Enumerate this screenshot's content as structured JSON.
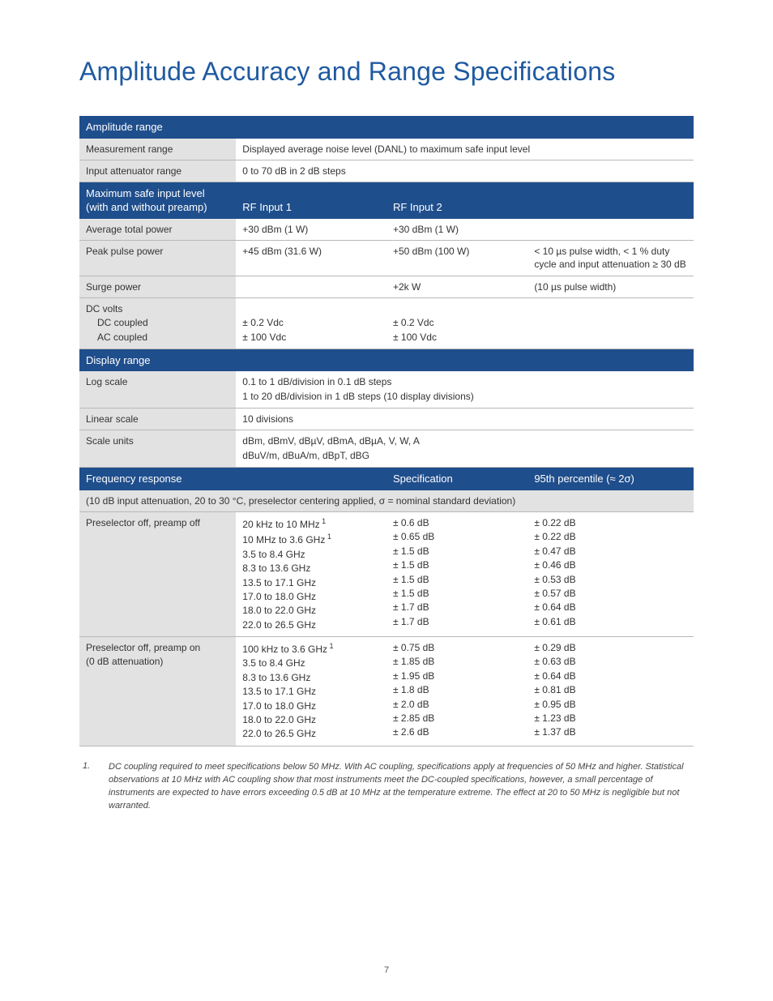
{
  "title": "Amplitude Accuracy and Range Specifications",
  "page_number": "7",
  "colors": {
    "header_bg": "#1f4e8c",
    "header_text": "#ffffff",
    "title_text": "#1f5aa0",
    "shade_bg": "#e2e2e2",
    "border": "#b8b8b8",
    "body_text": "#333333"
  },
  "sections": {
    "amplitude_range": {
      "header": "Amplitude range",
      "rows": [
        {
          "label": "Measurement range",
          "v1": "Displayed average noise level (DANL) to maximum safe input level"
        },
        {
          "label": "Input attenuator range",
          "v1": "0 to 70 dB in 2 dB steps"
        }
      ]
    },
    "max_safe": {
      "header_line1": "Maximum safe input level",
      "header_line2": "(with and without preamp)",
      "col2": "RF Input 1",
      "col3": "RF Input 2",
      "rows": [
        {
          "label": "Average total power",
          "v1": "+30 dBm (1 W)",
          "v2": "+30 dBm (1 W)",
          "v3": ""
        },
        {
          "label": "Peak pulse power",
          "v1": "+45 dBm (31.6 W)",
          "v2": "+50 dBm (100 W)",
          "v3": "< 10 µs pulse width, < 1 % duty cycle and input attenuation ≥ 30 dB"
        },
        {
          "label": "Surge power",
          "v1": "",
          "v2": "+2k W",
          "v3": "(10 µs pulse width)"
        }
      ],
      "dc_volts": {
        "label": "DC volts",
        "sub1_label": "DC coupled",
        "sub2_label": "AC coupled",
        "sub1_v1": "± 0.2 Vdc",
        "sub1_v2": "± 0.2 Vdc",
        "sub2_v1": "± 100 Vdc",
        "sub2_v2": "± 100 Vdc"
      }
    },
    "display_range": {
      "header": "Display range",
      "rows": {
        "log_scale": {
          "label": "Log scale",
          "l1": "0.1 to 1 dB/division in 0.1 dB steps",
          "l2": "1 to 20 dB/division in 1 dB steps (10 display divisions)"
        },
        "linear_scale": {
          "label": "Linear scale",
          "v1": "10 divisions"
        },
        "scale_units": {
          "label": "Scale units",
          "l1": "dBm, dBmV, dBµV, dBmA, dBµA, V, W, A",
          "l2": "dBuV/m, dBuA/m, dBpT, dBG"
        }
      }
    },
    "freq_response": {
      "header": "Frequency response",
      "col_spec": "Specification",
      "col_pct": "95th percentile (≈ 2σ)",
      "condition": "(10 dB input attenuation, 20 to 30 °C, preselector centering applied, σ = nominal standard deviation)",
      "group1": {
        "label": "Preselector off, preamp off",
        "rows": [
          {
            "range": "20 kHz to 10 MHz",
            "note": "1",
            "spec": "± 0.6 dB",
            "pct": "± 0.22 dB"
          },
          {
            "range": "10 MHz to 3.6 GHz",
            "note": "1",
            "spec": "± 0.65 dB",
            "pct": "± 0.22 dB"
          },
          {
            "range": "3.5 to 8.4 GHz",
            "note": "",
            "spec": "± 1.5 dB",
            "pct": "± 0.47 dB"
          },
          {
            "range": "8.3 to 13.6 GHz",
            "note": "",
            "spec": "± 1.5 dB",
            "pct": "± 0.46 dB"
          },
          {
            "range": "13.5 to 17.1 GHz",
            "note": "",
            "spec": "± 1.5 dB",
            "pct": "± 0.53 dB"
          },
          {
            "range": "17.0 to 18.0 GHz",
            "note": "",
            "spec": "± 1.5 dB",
            "pct": "± 0.57 dB"
          },
          {
            "range": "18.0 to 22.0 GHz",
            "note": "",
            "spec": "± 1.7 dB",
            "pct": "± 0.64 dB"
          },
          {
            "range": "22.0 to 26.5 GHz",
            "note": "",
            "spec": "± 1.7 dB",
            "pct": "± 0.61 dB"
          }
        ]
      },
      "group2": {
        "label_l1": "Preselector off, preamp on",
        "label_l2": "(0 dB attenuation)",
        "rows": [
          {
            "range": "100 kHz to 3.6 GHz",
            "note": "1",
            "spec": "± 0.75 dB",
            "pct": "± 0.29 dB"
          },
          {
            "range": "3.5 to 8.4 GHz",
            "note": "",
            "spec": "± 1.85 dB",
            "pct": "± 0.63 dB"
          },
          {
            "range": "8.3 to 13.6 GHz",
            "note": "",
            "spec": "± 1.95 dB",
            "pct": "± 0.64 dB"
          },
          {
            "range": "13.5 to 17.1 GHz",
            "note": "",
            "spec": "± 1.8 dB",
            "pct": "± 0.81 dB"
          },
          {
            "range": "17.0 to 18.0 GHz",
            "note": "",
            "spec": "± 2.0 dB",
            "pct": "± 0.95 dB"
          },
          {
            "range": "18.0 to 22.0 GHz",
            "note": "",
            "spec": "± 2.85 dB",
            "pct": "± 1.23 dB"
          },
          {
            "range": "22.0 to 26.5 GHz",
            "note": "",
            "spec": "± 2.6 dB",
            "pct": "± 1.37 dB"
          }
        ]
      }
    }
  },
  "footnote": {
    "num": "1.",
    "text": "DC coupling required to meet specifications below 50 MHz. With AC coupling, specifications apply at frequencies of 50 MHz and higher. Statistical observations at 10 MHz with AC coupling show that most instruments meet the DC-coupled specifications, however, a small percentage of instruments are expected to have errors exceeding 0.5 dB at 10 MHz at the temperature extreme. The effect at 20 to 50 MHz is negligible but not warranted."
  }
}
